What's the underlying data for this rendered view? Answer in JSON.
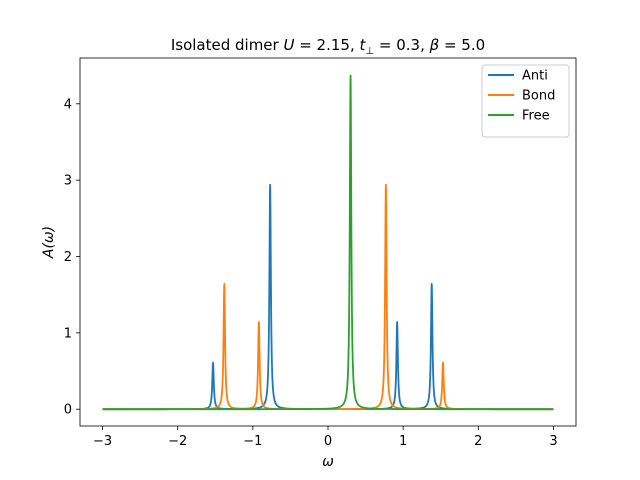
{
  "chart_data": {
    "type": "line",
    "title_plain": "Isolated dimer ",
    "title_math": "U = 2.15, t⊥ = 0.3, β = 5.0",
    "title_parts": {
      "prefix": "Isolated dimer ",
      "U_sym": "U",
      "U_val": " = 2.15, ",
      "t_sym": "t",
      "t_sub": "⊥",
      "t_val": " = 0.3, ",
      "beta_sym": "β",
      "beta_val": " = 5.0"
    },
    "xlabel": "ω",
    "ylabel": "A(ω)",
    "xlim": [
      -3.3,
      3.3
    ],
    "ylim": [
      -0.22,
      4.6
    ],
    "xticks": [
      -3,
      -2,
      -1,
      0,
      1,
      2,
      3
    ],
    "yticks": [
      0,
      1,
      2,
      3,
      4
    ],
    "x_range": [
      -3,
      3
    ],
    "peak_width": 0.012,
    "legend_position": "upper right",
    "series": [
      {
        "name": "Anti",
        "color": "#1f77b4",
        "peaks": [
          {
            "x": -1.53,
            "height": 0.61
          },
          {
            "x": -0.77,
            "height": 2.94
          },
          {
            "x": 0.92,
            "height": 1.14
          },
          {
            "x": 1.38,
            "height": 1.64
          }
        ]
      },
      {
        "name": "Bond",
        "color": "#ff7f0e",
        "peaks": [
          {
            "x": -1.38,
            "height": 1.64
          },
          {
            "x": -0.92,
            "height": 1.14
          },
          {
            "x": 0.77,
            "height": 2.94
          },
          {
            "x": 1.53,
            "height": 0.61
          }
        ]
      },
      {
        "name": "Free",
        "color": "#2ca02c",
        "peaks": [
          {
            "x": 0.3,
            "height": 4.37
          }
        ]
      }
    ]
  }
}
